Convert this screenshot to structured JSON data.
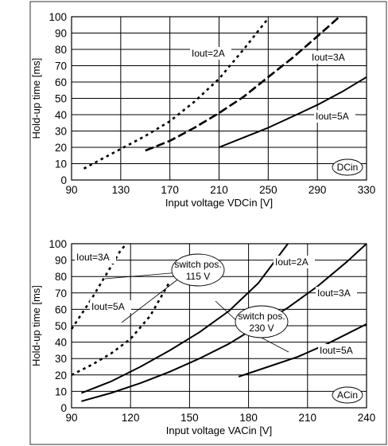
{
  "chart_data": [
    {
      "type": "line",
      "id": "dc",
      "xlabel": "Input voltage VDCin [V]",
      "ylabel": "Hold-up time [ms]",
      "xlim": [
        90,
        330
      ],
      "ylim": [
        0,
        100
      ],
      "xticks": [
        90,
        130,
        170,
        210,
        250,
        290,
        330
      ],
      "yticks": [
        0,
        10,
        20,
        30,
        40,
        50,
        60,
        70,
        80,
        90,
        100
      ],
      "grid": true,
      "badge": "DCin",
      "series": [
        {
          "name": "Iout=2A",
          "style": "dotted",
          "x": [
            100,
            115,
            130,
            150,
            170,
            190,
            210,
            230,
            250
          ],
          "y": [
            7,
            13,
            19,
            27,
            36,
            48,
            62,
            80,
            99
          ]
        },
        {
          "name": "Iout=3A",
          "style": "dashed",
          "x": [
            150,
            170,
            190,
            210,
            230,
            250,
            270,
            290,
            308
          ],
          "y": [
            18,
            24,
            32,
            41,
            51,
            63,
            75,
            88,
            100
          ]
        },
        {
          "name": "Iout=5A",
          "style": "solid",
          "x": [
            210,
            230,
            250,
            270,
            290,
            310,
            330
          ],
          "y": [
            20,
            26,
            32,
            39,
            46,
            54,
            63
          ]
        }
      ]
    },
    {
      "type": "line",
      "id": "ac",
      "xlabel": "Input voltage VACin [V]",
      "ylabel": "Hold-up time [ms]",
      "xlim": [
        90,
        240
      ],
      "ylim": [
        0,
        100
      ],
      "xticks": [
        90,
        120,
        150,
        180,
        210,
        240
      ],
      "yticks": [
        0,
        10,
        20,
        30,
        40,
        50,
        60,
        70,
        80,
        90,
        100
      ],
      "grid": true,
      "badge": "ACin",
      "callouts": [
        "switch pos. 115 V",
        "switch pos. 230 V"
      ],
      "series": [
        {
          "name": "Iout=3A",
          "group": "115 V",
          "style": "dotted",
          "x": [
            90,
            95,
            100,
            105,
            110,
            115,
            118
          ],
          "y": [
            48,
            57,
            66,
            76,
            86,
            96,
            100
          ]
        },
        {
          "name": "Iout=5A",
          "group": "115 V",
          "style": "dotted",
          "x": [
            90,
            100,
            110,
            120,
            130,
            140
          ],
          "y": [
            20,
            26,
            33,
            42,
            56,
            77
          ]
        },
        {
          "name": "Iout=2A",
          "group": "230 V",
          "style": "solid",
          "x": [
            95,
            110,
            125,
            140,
            155,
            170,
            185,
            200
          ],
          "y": [
            9,
            16,
            25,
            35,
            46,
            59,
            76,
            100
          ]
        },
        {
          "name": "Iout=3A",
          "group": "230 V",
          "style": "solid",
          "x": [
            95,
            110,
            125,
            140,
            155,
            170,
            185,
            200,
            215,
            230,
            240
          ],
          "y": [
            4,
            9,
            15,
            22,
            30,
            39,
            50,
            61,
            74,
            89,
            100
          ]
        },
        {
          "name": "Iout=5A",
          "group": "230 V",
          "style": "solid",
          "x": [
            175,
            190,
            205,
            220,
            230,
            240
          ],
          "y": [
            19,
            25,
            31,
            39,
            45,
            51
          ]
        }
      ]
    }
  ]
}
